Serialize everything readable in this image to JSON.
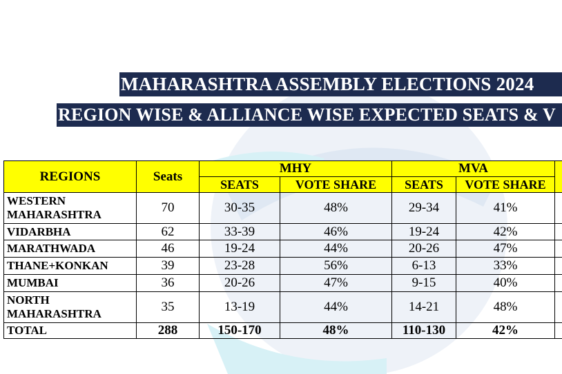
{
  "header": {
    "title": "MAHARASHTRA ASSEMBLY ELECTIONS 2024",
    "subtitle": "REGION WISE & ALLIANCE WISE EXPECTED SEATS & V"
  },
  "table": {
    "columns": [
      "REGIONS",
      "Seats"
    ],
    "groups": [
      "MHY",
      "MVA"
    ],
    "subheaders": [
      "SEATS",
      "VOTE SHARE",
      "SEATS",
      "VOTE SHARE"
    ],
    "rows": [
      [
        "WESTERN MAHARASHTRA",
        "70",
        "30-35",
        "48%",
        "29-34",
        "41%"
      ],
      [
        "VIDARBHA",
        "62",
        "33-39",
        "46%",
        "19-24",
        "42%"
      ],
      [
        "MARATHWADA",
        "46",
        "19-24",
        "44%",
        "20-26",
        "47%"
      ],
      [
        "THANE+KONKAN",
        "39",
        "23-28",
        "56%",
        "6-13",
        "33%"
      ],
      [
        "MUMBAI",
        "36",
        "20-26",
        "47%",
        "9-15",
        "40%"
      ],
      [
        "NORTH MAHARASHTRA",
        "35",
        "13-19",
        "44%",
        "14-21",
        "48%"
      ]
    ],
    "total": [
      "TOTAL",
      "288",
      "150-170",
      "48%",
      "110-130",
      "42%"
    ]
  }
}
